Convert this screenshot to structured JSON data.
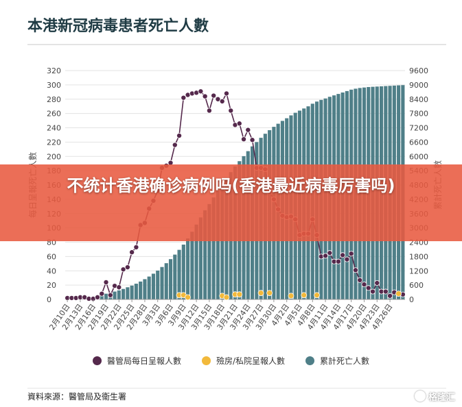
{
  "title": "本港新冠病毒患者死亡人數",
  "banner_text": "不统计香港确诊病例吗(香港最近病毒厉害吗)",
  "source": "資料來源：醫管局及衞生署",
  "logo_text": "格隆汇",
  "colors": {
    "deaths": "#55294c",
    "private": "#f2b93b",
    "cumulative": "#4f7f88",
    "banner": "#e85a40",
    "title": "#1f3b44"
  },
  "chart_data": {
    "type": "bar+line",
    "ylabel_left": "每日呈報死亡人數",
    "ylabel_right": "累計死亡人數",
    "ylim_left": [
      0,
      320
    ],
    "ylim_right": [
      0,
      9600
    ],
    "yticks_left": [
      0,
      20,
      40,
      60,
      80,
      100,
      120,
      140,
      160,
      180,
      200,
      220,
      240,
      260,
      280,
      300,
      320
    ],
    "yticks_right": [
      0,
      600,
      1200,
      1800,
      2400,
      3000,
      3600,
      4200,
      4800,
      5400,
      6000,
      6600,
      7200,
      7800,
      8400,
      9000,
      9600
    ],
    "grid": true,
    "legend_position": "bottom",
    "x_tick_labels": [
      "2月10日",
      "2月13日",
      "2月16日",
      "2月19日",
      "2月22日",
      "2月25日",
      "2月28日",
      "3月3日",
      "3月6日",
      "3月9日",
      "3月12日",
      "3月15日",
      "3月18日",
      "3月21日",
      "3月24日",
      "3月27日",
      "3月30日",
      "4月2日",
      "4月5日",
      "4月8日",
      "4月11日",
      "4月14日",
      "4月17日",
      "4月20日",
      "4月23日",
      "4月26日"
    ],
    "series": [
      {
        "name": "醫管局每日呈報人數",
        "type": "line",
        "axis": "left",
        "values": [
          2,
          2,
          2,
          3,
          3,
          1,
          1,
          3,
          8,
          24,
          6,
          19,
          17,
          42,
          45,
          66,
          73,
          104,
          107,
          127,
          138,
          152,
          184,
          187,
          191,
          216,
          229,
          282,
          286,
          288,
          289,
          291,
          284,
          264,
          285,
          280,
          277,
          288,
          264,
          244,
          246,
          224,
          237,
          223,
          184,
          184,
          182,
          150,
          140,
          126,
          117,
          115,
          116,
          112,
          90,
          92,
          92,
          112,
          90,
          60,
          61,
          65,
          53,
          53,
          62,
          56,
          64,
          41,
          27,
          21,
          16,
          11,
          23,
          11,
          11,
          5,
          10,
          8,
          7
        ]
      },
      {
        "name": "殮房/私院呈報人數",
        "type": "scatter",
        "axis": "left",
        "points": [
          [
            26,
            6
          ],
          [
            27,
            6
          ],
          [
            28,
            3
          ],
          [
            36,
            5
          ],
          [
            37,
            3
          ],
          [
            39,
            7
          ],
          [
            40,
            7
          ],
          [
            45,
            9
          ],
          [
            47,
            9
          ],
          [
            52,
            5
          ],
          [
            55,
            6
          ],
          [
            58,
            6
          ],
          [
            77,
            8
          ]
        ]
      },
      {
        "name": "累計死亡人數",
        "type": "bar",
        "axis": "right",
        "values": [
          20,
          30,
          40,
          60,
          80,
          100,
          120,
          150,
          190,
          240,
          280,
          330,
          380,
          440,
          510,
          580,
          660,
          750,
          850,
          960,
          1080,
          1210,
          1360,
          1520,
          1690,
          1880,
          2080,
          2300,
          2560,
          2840,
          3140,
          3440,
          3740,
          4000,
          4280,
          4550,
          4820,
          5090,
          5340,
          5580,
          5800,
          6010,
          6220,
          6420,
          6600,
          6780,
          6950,
          7100,
          7240,
          7370,
          7490,
          7600,
          7720,
          7830,
          7920,
          8010,
          8100,
          8210,
          8300,
          8370,
          8430,
          8500,
          8560,
          8620,
          8680,
          8740,
          8800,
          8840,
          8870,
          8890,
          8910,
          8920,
          8930,
          8940,
          8950,
          8960,
          8970,
          8980,
          8990
        ]
      }
    ]
  }
}
